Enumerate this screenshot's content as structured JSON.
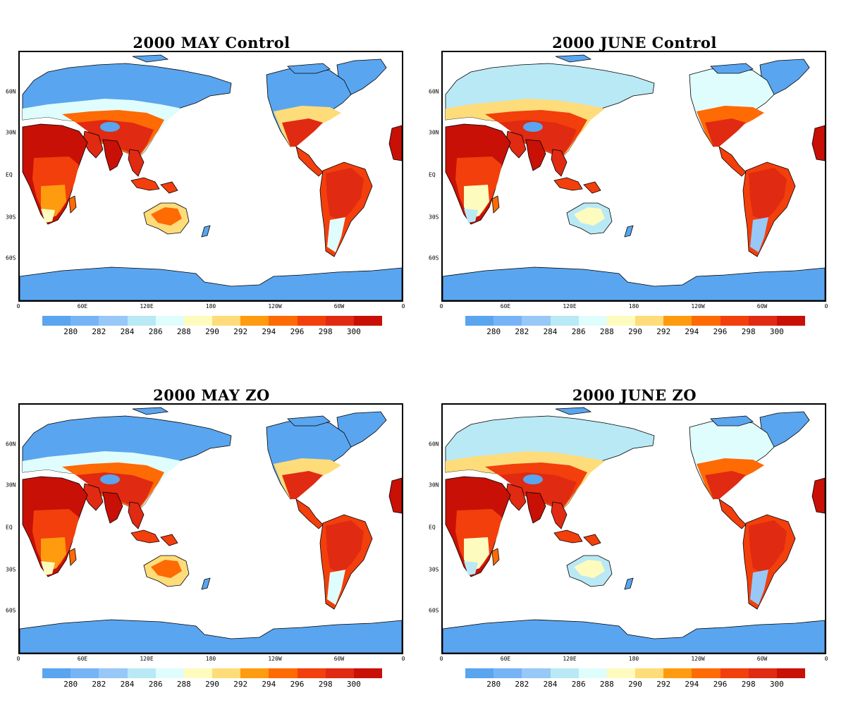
{
  "colors": {
    "ocean": "#ffffff",
    "ice": "#5aa5ef",
    "coast": "#000000"
  },
  "colorbar": {
    "colors": [
      "#5aa5ef",
      "#76b4f5",
      "#97c8f7",
      "#b9e9f5",
      "#e0fdfd",
      "#fefbbf",
      "#fedc7a",
      "#fe9b0f",
      "#fe6a04",
      "#f23f0c",
      "#e02a12",
      "#c81006"
    ],
    "labels": [
      "280",
      "282",
      "284",
      "286",
      "288",
      "290",
      "292",
      "294",
      "296",
      "298",
      "300"
    ]
  },
  "axes": {
    "lat_labels": [
      "60N",
      "30N",
      "EQ",
      "30S",
      "60S"
    ],
    "lon_labels": [
      "0",
      "60E",
      "120E",
      "180",
      "120W",
      "60W",
      "0"
    ]
  },
  "panels": [
    {
      "title": "2000 MAY Control"
    },
    {
      "title": "2000 JUNE Control"
    },
    {
      "title": "2000 MAY ZO"
    },
    {
      "title": "2000 JUNE ZO"
    }
  ]
}
